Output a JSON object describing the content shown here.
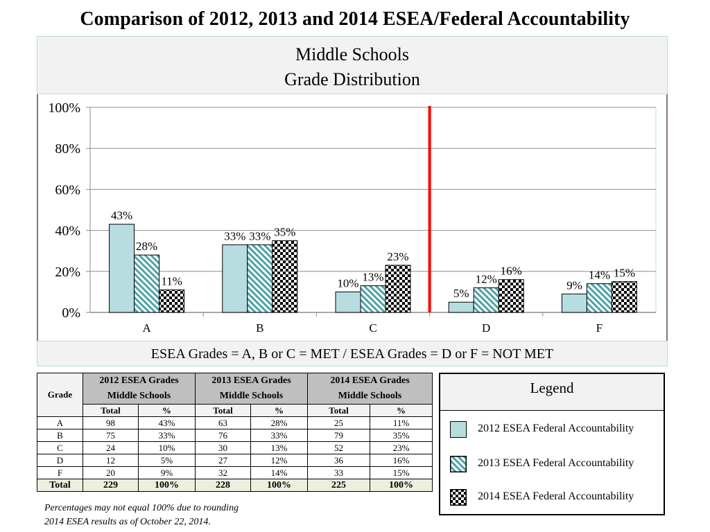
{
  "page": {
    "title": "Comparison of 2012, 2013 and 2014 ESEA/Federal Accountability"
  },
  "chart_data": {
    "type": "bar",
    "title_line1": "Middle Schools",
    "title_line2": "Grade Distribution",
    "footer": "ESEA Grades = A, B or C = MET / ESEA Grades = D or F = NOT MET",
    "categories": [
      "A",
      "B",
      "C",
      "D",
      "F"
    ],
    "series": [
      {
        "name": "2012 ESEA Federal Accountability",
        "values": [
          43,
          33,
          10,
          5,
          9
        ],
        "labels": [
          "43%",
          "33%",
          "10%",
          "5%",
          "9%"
        ],
        "color": "#b7dde0",
        "pattern": "solid"
      },
      {
        "name": "2013 ESEA Federal Accountability",
        "values": [
          28,
          33,
          13,
          12,
          14
        ],
        "labels": [
          "28%",
          "33%",
          "13%",
          "12%",
          "14%"
        ],
        "color": "#4aa3a8",
        "pattern": "diagonal-stripes"
      },
      {
        "name": "2014 ESEA Federal Accountability",
        "values": [
          11,
          35,
          23,
          16,
          15
        ],
        "labels": [
          "11%",
          "35%",
          "23%",
          "16%",
          "15%"
        ],
        "color": "#000000",
        "pattern": "checkerboard"
      }
    ],
    "ylim": [
      0,
      100
    ],
    "yticks": [
      0,
      20,
      40,
      60,
      80,
      100
    ],
    "ytick_labels": [
      "0%",
      "20%",
      "40%",
      "60%",
      "80%",
      "100%"
    ],
    "grid": true,
    "divider_between": [
      "C",
      "D"
    ],
    "divider_color": "#ff0000"
  },
  "table": {
    "grade_header": "Grade",
    "groups": [
      {
        "line1": "2012 ESEA Grades",
        "line2": "Middle Schools"
      },
      {
        "line1": "2013 ESEA Grades",
        "line2": "Middle Schools"
      },
      {
        "line1": "2014 ESEA Grades",
        "line2": "Middle Schools"
      }
    ],
    "sub_total": "Total",
    "sub_pct": "%",
    "rows": [
      {
        "grade": "A",
        "c": [
          "98",
          "43%",
          "63",
          "28%",
          "25",
          "11%"
        ]
      },
      {
        "grade": "B",
        "c": [
          "75",
          "33%",
          "76",
          "33%",
          "79",
          "35%"
        ]
      },
      {
        "grade": "C",
        "c": [
          "24",
          "10%",
          "30",
          "13%",
          "52",
          "23%"
        ]
      },
      {
        "grade": "D",
        "c": [
          "12",
          "5%",
          "27",
          "12%",
          "36",
          "16%"
        ]
      },
      {
        "grade": "F",
        "c": [
          "20",
          "9%",
          "32",
          "14%",
          "33",
          "15%"
        ]
      }
    ],
    "total": {
      "grade": "Total",
      "c": [
        "229",
        "100%",
        "228",
        "100%",
        "225",
        "100%"
      ]
    }
  },
  "footnote": {
    "line1": "Percentages may not equal 100% due to rounding",
    "line2": "2014 ESEA results as of October 22, 2014."
  },
  "legend": {
    "title": "Legend",
    "items": [
      {
        "label": "2012 ESEA Federal Accountability",
        "pattern": "solid"
      },
      {
        "label": "2013 ESEA Federal Accountability",
        "pattern": "diagonal-stripes"
      },
      {
        "label": "2014 ESEA Federal Accountability",
        "pattern": "checkerboard"
      }
    ]
  }
}
